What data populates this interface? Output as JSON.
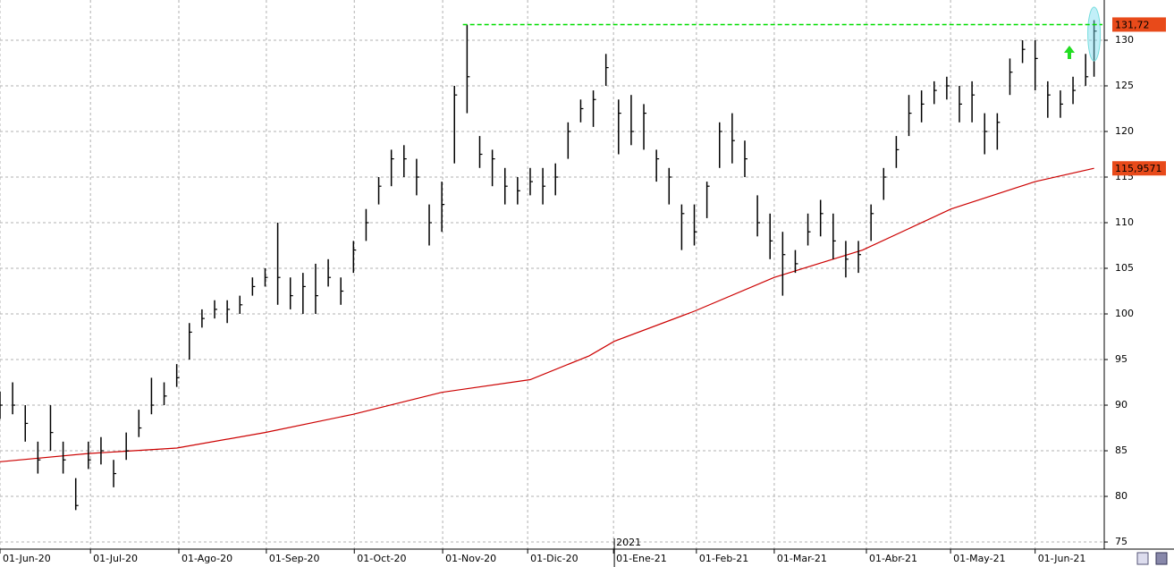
{
  "chart_data": {
    "type": "ohlc",
    "x": [
      0,
      3,
      6,
      9,
      12,
      15,
      18,
      21,
      24,
      27,
      30,
      33,
      36,
      39,
      42,
      45,
      48,
      51,
      54,
      57,
      60,
      63,
      66,
      69,
      72,
      75,
      78,
      81,
      84,
      87,
      90,
      93,
      96,
      99,
      102,
      105,
      108,
      111,
      114,
      117,
      120,
      123,
      126,
      129,
      132,
      135,
      138,
      141,
      144,
      147,
      150,
      153,
      156,
      159,
      162,
      165,
      168,
      171,
      174,
      177,
      180,
      183,
      186,
      189,
      192,
      195,
      198,
      201,
      204,
      207,
      210,
      213,
      216,
      219,
      222,
      225,
      228,
      231,
      234,
      237,
      240,
      243,
      246,
      249,
      252,
      255,
      258,
      260
    ],
    "high": [
      91.5,
      92.5,
      90,
      86,
      90,
      86,
      82,
      86,
      86.5,
      84,
      87,
      89.5,
      93,
      92.5,
      94.5,
      99,
      100.5,
      101.5,
      101.5,
      102,
      104,
      105,
      110,
      104,
      104.5,
      105.5,
      106,
      104,
      108,
      111.5,
      115,
      118,
      118.5,
      117,
      112,
      114.5,
      125,
      131.7,
      119.5,
      118,
      116,
      115,
      116,
      116,
      116.5,
      121,
      123.5,
      124.5,
      128.5,
      123.5,
      124,
      123,
      118,
      116,
      112,
      112,
      114.5,
      121,
      122,
      119,
      113,
      111,
      109,
      107,
      111,
      112.5,
      111,
      108,
      108,
      112,
      116,
      119.5,
      124,
      124.5,
      125.5,
      126,
      125,
      125.5,
      122,
      122,
      128,
      130,
      130,
      125.5,
      124.5,
      126,
      128.5,
      132.2
    ],
    "low": [
      88.5,
      89,
      86,
      82.5,
      85,
      82.5,
      78.5,
      83,
      83.5,
      81,
      84,
      86.5,
      89,
      90,
      92,
      95,
      98.5,
      99.5,
      99,
      100,
      102,
      103,
      101,
      100.5,
      100,
      100,
      103,
      101,
      104.5,
      108,
      112,
      114,
      115,
      113,
      107.5,
      109,
      116.5,
      122,
      116,
      114,
      112,
      112,
      113,
      112,
      113,
      117,
      121,
      120.5,
      125,
      117.5,
      118.5,
      118,
      114.5,
      112,
      107,
      107.5,
      110.5,
      116,
      116.5,
      115,
      108.5,
      106,
      102,
      104.5,
      107.5,
      108.5,
      106,
      104,
      104.5,
      108,
      112.5,
      116,
      119.5,
      121,
      123,
      123.5,
      121,
      121,
      117.5,
      118,
      124,
      127.5,
      124.5,
      121.5,
      121.5,
      123,
      125,
      126
    ],
    "close": [
      90,
      90,
      88,
      84,
      87,
      84,
      79,
      84,
      85,
      82.5,
      85,
      87.5,
      90,
      91,
      93,
      98,
      99.5,
      100.5,
      100.5,
      101,
      103,
      104,
      104,
      102,
      103,
      102,
      104,
      102.5,
      107,
      110,
      114,
      117,
      117,
      115,
      110,
      112,
      124,
      126,
      117.5,
      117,
      114,
      113.5,
      114.5,
      114,
      115,
      120,
      122.5,
      123.5,
      127,
      122,
      120,
      122,
      117,
      115,
      111,
      109,
      114,
      120,
      119,
      117,
      110,
      108,
      106.5,
      105.5,
      109,
      111,
      108,
      106,
      106.5,
      111,
      115,
      118,
      122,
      123,
      124.5,
      125,
      123,
      124,
      120,
      121,
      126.5,
      129,
      128,
      124,
      123,
      124.5,
      126,
      131
    ],
    "color": "#000000",
    "moving_average": {
      "color": "#cc0000",
      "x": [
        0,
        21,
        42,
        63,
        84,
        105,
        126,
        140,
        146,
        165,
        184,
        205,
        226,
        246,
        260
      ],
      "values": [
        83.8,
        84.7,
        85.3,
        87,
        89,
        91.4,
        92.8,
        95.4,
        97,
        100.3,
        104,
        107,
        111.5,
        114.5,
        115.9571
      ],
      "last_label": {
        "value": 115.9571,
        "label": "115,9571"
      }
    },
    "resistance": {
      "color": "#00dd00",
      "x_start": 110,
      "value": 131.72,
      "label": "131,72"
    },
    "xlim": [
      0,
      262
    ],
    "xticks": [
      {
        "value": 0,
        "label": "01-Jun-20"
      },
      {
        "value": 21.5,
        "label": "01-Jul-20"
      },
      {
        "value": 42.5,
        "label": "01-Ago-20"
      },
      {
        "value": 63.3,
        "label": "01-Sep-20"
      },
      {
        "value": 84.2,
        "label": "01-Oct-20"
      },
      {
        "value": 105.2,
        "label": "01-Nov-20"
      },
      {
        "value": 125.4,
        "label": "01-Dic-20"
      },
      {
        "value": 145.8,
        "label": "01-Ene-21"
      },
      {
        "value": 165.5,
        "label": "01-Feb-21"
      },
      {
        "value": 184,
        "label": "01-Mar-21"
      },
      {
        "value": 205.9,
        "label": "01-Abr-21"
      },
      {
        "value": 225.9,
        "label": "01-May-21"
      },
      {
        "value": 246,
        "label": "01-Jun-21"
      }
    ],
    "year_marker": {
      "value": 146,
      "label": "2021"
    },
    "ylim": [
      74.22,
      134.41
    ],
    "yticks": [
      75,
      80,
      85,
      90,
      95,
      100,
      105,
      110,
      115,
      120,
      125,
      130
    ],
    "grid": true
  }
}
